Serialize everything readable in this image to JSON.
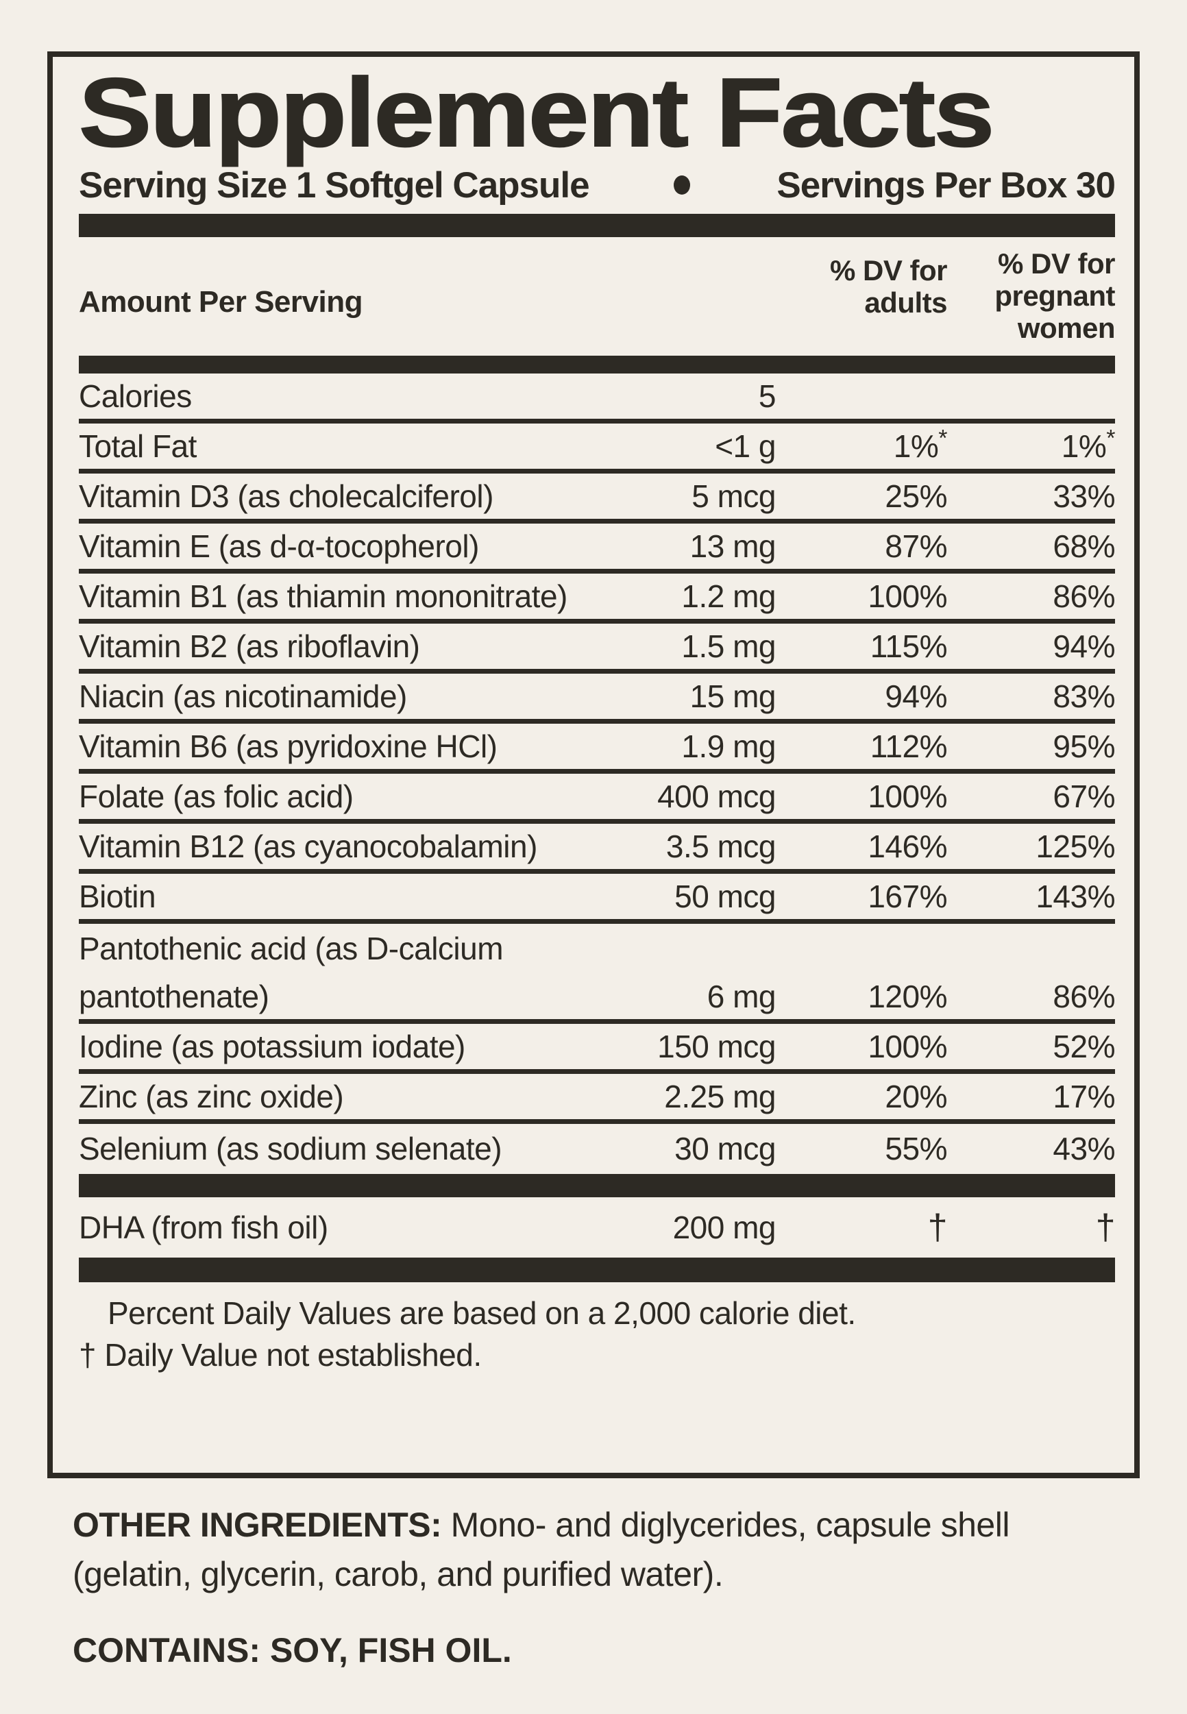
{
  "title": "Supplement Facts",
  "serving_line": {
    "serving_size": "Serving Size 1 Softgel Capsule",
    "servings_per_box": "Servings Per Box 30"
  },
  "header": {
    "amount_label": "Amount Per Serving",
    "adults_lines": [
      "% DV for",
      "adults"
    ],
    "pregnant_lines": [
      "% DV for",
      "pregnant",
      "women"
    ]
  },
  "rows": [
    {
      "name": "Calories",
      "amount": "5",
      "adults": "",
      "pregnant": ""
    },
    {
      "name": "Total Fat",
      "amount": "<1 g",
      "adults": "1%*",
      "pregnant": "1%*"
    },
    {
      "name": "Vitamin D3 (as cholecalciferol)",
      "amount": "5 mcg",
      "adults": "25%",
      "pregnant": "33%"
    },
    {
      "name": "Vitamin E (as d-α-tocopherol)",
      "amount": "13 mg",
      "adults": "87%",
      "pregnant": "68%"
    },
    {
      "name": "Vitamin B1 (as thiamin mononitrate)",
      "amount": "1.2 mg",
      "adults": "100%",
      "pregnant": "86%"
    },
    {
      "name": "Vitamin B2 (as riboflavin)",
      "amount": "1.5 mg",
      "adults": "115%",
      "pregnant": "94%"
    },
    {
      "name": "Niacin (as nicotinamide)",
      "amount": "15 mg",
      "adults": "94%",
      "pregnant": "83%"
    },
    {
      "name": "Vitamin B6 (as pyridoxine HCl)",
      "amount": "1.9 mg",
      "adults": "112%",
      "pregnant": "95%"
    },
    {
      "name": "Folate (as folic acid)",
      "amount": "400 mcg",
      "adults": "100%",
      "pregnant": "67%"
    },
    {
      "name": "Vitamin B12 (as cyanocobalamin)",
      "amount": "3.5 mcg",
      "adults": "146%",
      "pregnant": "125%"
    },
    {
      "name": "Biotin",
      "amount": "50 mcg",
      "adults": "167%",
      "pregnant": "143%"
    },
    {
      "name": "Pantothenic acid (as D-calcium",
      "amount": "",
      "adults": "",
      "pregnant": "",
      "no_rule": true
    },
    {
      "name": "pantothenate)",
      "amount": "6 mg",
      "adults": "120%",
      "pregnant": "86%"
    },
    {
      "name": "Iodine (as potassium iodate)",
      "amount": "150 mcg",
      "adults": "100%",
      "pregnant": "52%"
    },
    {
      "name": "Zinc (as zinc oxide)",
      "amount": "2.25 mg",
      "adults": "20%",
      "pregnant": "17%"
    },
    {
      "name": "Selenium (as sodium selenate)",
      "amount": "30 mcg",
      "adults": "55%",
      "pregnant": "43%",
      "no_rule": true
    }
  ],
  "dha_row": {
    "name": "DHA (from fish oil)",
    "amount": "200 mg",
    "adults": "†",
    "pregnant": "†"
  },
  "footnotes": {
    "percent": "Percent Daily Values are based on a 2,000 calorie diet.",
    "dagger": "† Daily Value not established."
  },
  "other_ingredients": {
    "label": "OTHER INGREDIENTS:",
    "line1": "Mono- and diglycerides, capsule shell",
    "line2": "(gelatin, glycerin, carob, and purified water)."
  },
  "contains": "CONTAINS: SOY, FISH OIL.",
  "colors": {
    "ink": "#2d2a24",
    "background": "#f3efe8"
  }
}
